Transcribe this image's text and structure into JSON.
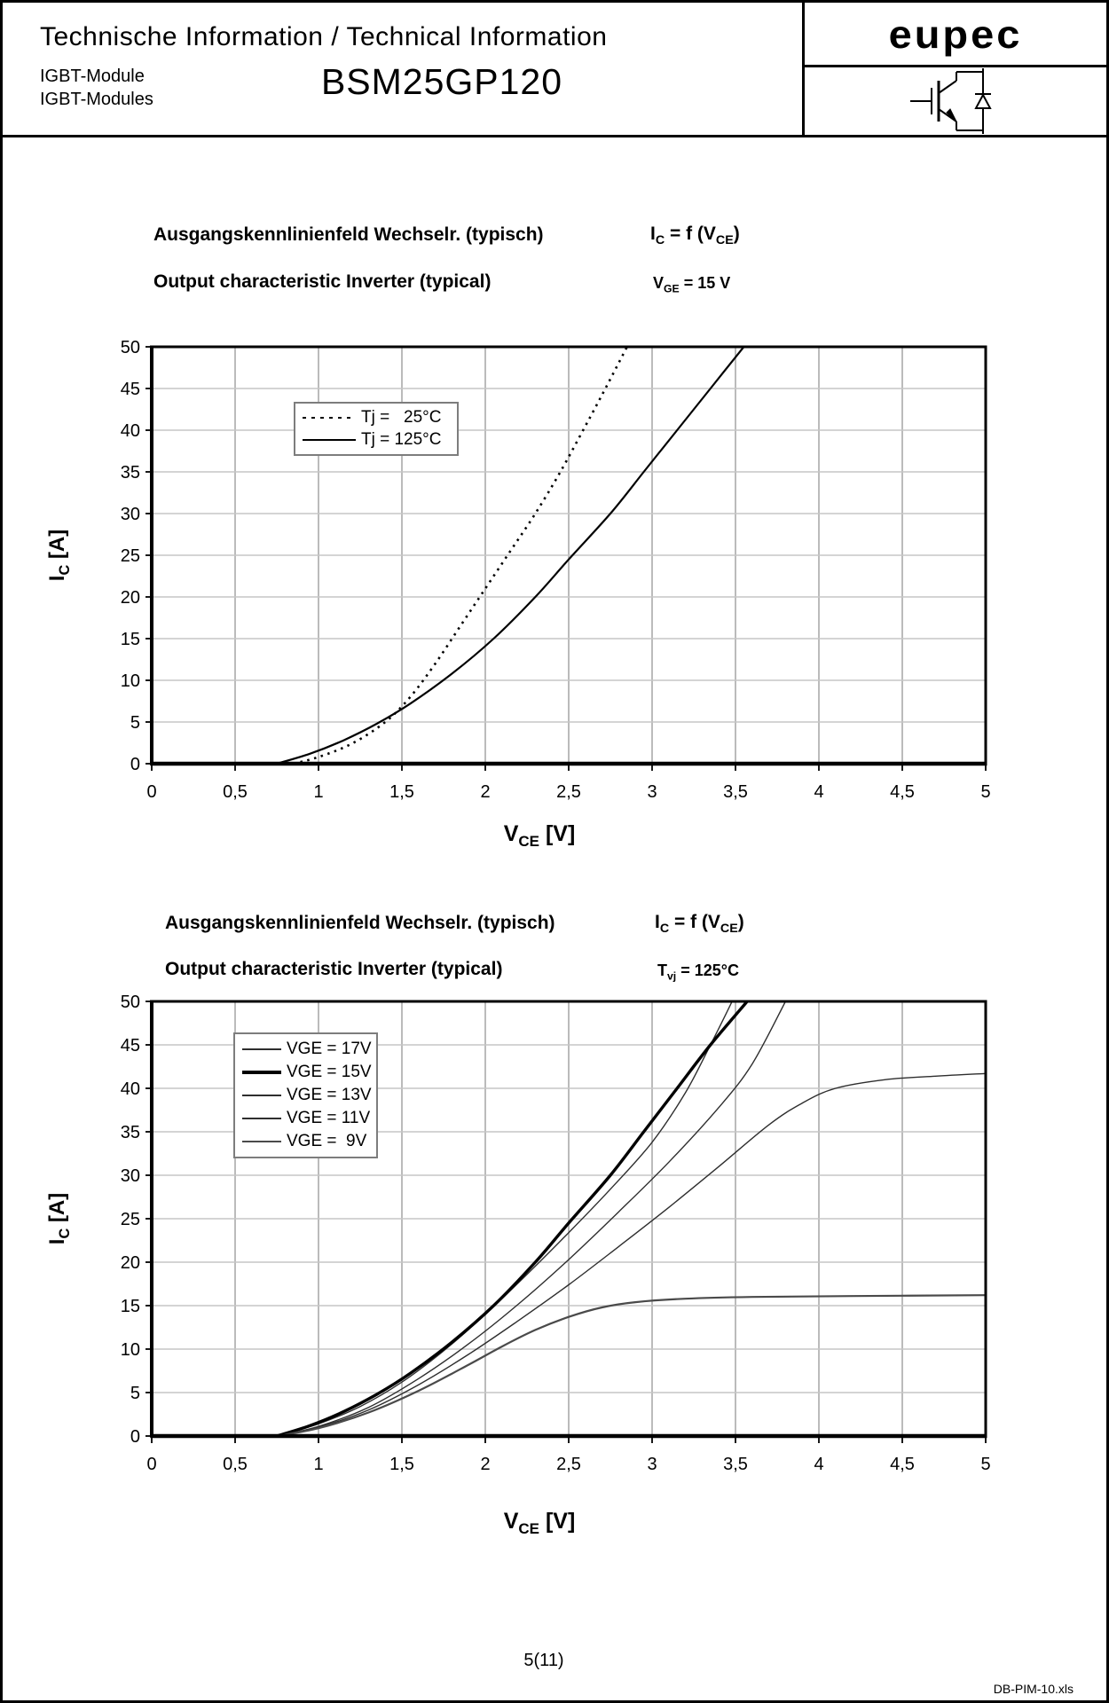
{
  "header": {
    "title": "Technische Information / Technical Information",
    "subtitle_de": "IGBT-Module",
    "subtitle_en": "IGBT-Modules",
    "part_number": "BSM25GP120",
    "brand": "eupec"
  },
  "chart1": {
    "title_de": "Ausgangskennlinienfeld Wechselr. (typisch)",
    "title_en": "Output characteristic Inverter (typical)",
    "formula": {
      "p1": "I",
      "s1": "C",
      "p2": " = f (V",
      "s2": "CE",
      "p3": ")"
    },
    "condition": {
      "p1": "V",
      "s1": "GE",
      "p2": " = 15 V"
    }
  },
  "chart2": {
    "title_de": "Ausgangskennlinienfeld Wechselr. (typisch)",
    "title_en": "Output characteristic Inverter (typical)",
    "formula": {
      "p1": "I",
      "s1": "C",
      "p2": " = f (V",
      "s2": "CE",
      "p3": ")"
    },
    "condition": {
      "p1": "T",
      "s1": "vj",
      "p2": " = 125°C"
    }
  },
  "axis": {
    "y_sym": "I",
    "y_sub": "C",
    "y_unit": " [A]",
    "x_sym": "V",
    "x_sub": "CE",
    "x_unit": " [V]"
  },
  "footer": {
    "page": "5(11)",
    "file": "DB-PIM-10.xls"
  },
  "colors": {
    "grid_v": "#9e9e9e",
    "grid_h": "#c6c6c6",
    "axis": "#000000",
    "curve_thin": "#2e2e2e",
    "curve_bold": "#000000",
    "curve_medium": "#4a4a4a"
  },
  "chart_data": [
    {
      "type": "line",
      "title": "Ausgangskennlinienfeld Wechselr. (typisch) / Output characteristic Inverter (typical)",
      "condition": "VGE = 15 V",
      "xlabel": "VCE [V]",
      "ylabel": "IC [A]",
      "xlim": [
        0,
        5
      ],
      "ylim": [
        0,
        50
      ],
      "grid": true,
      "legend_position": "upper-left-inside",
      "xticks": [
        "0",
        "0,5",
        "1",
        "1,5",
        "2",
        "2,5",
        "3",
        "3,5",
        "4",
        "4,5",
        "5"
      ],
      "yticks": [
        "0",
        "5",
        "10",
        "15",
        "20",
        "25",
        "30",
        "35",
        "40",
        "45",
        "50"
      ],
      "series": [
        {
          "name": "Tj =   25°C",
          "style": "dotted",
          "color": "#000000",
          "width": 2.6,
          "points": [
            [
              0.85,
              0
            ],
            [
              1.0,
              0.8
            ],
            [
              1.2,
              2.4
            ],
            [
              1.4,
              5.0
            ],
            [
              1.55,
              8.0
            ],
            [
              1.7,
              12.0
            ],
            [
              1.85,
              16.5
            ],
            [
              2.0,
              21.0
            ],
            [
              2.15,
              25.5
            ],
            [
              2.3,
              30.0
            ],
            [
              2.45,
              35.0
            ],
            [
              2.6,
              40.5
            ],
            [
              2.72,
              45.0
            ],
            [
              2.85,
              50.0
            ]
          ]
        },
        {
          "name": "Tj = 125°C",
          "style": "solid",
          "color": "#000000",
          "width": 2.2,
          "points": [
            [
              0.75,
              0
            ],
            [
              0.95,
              1.2
            ],
            [
              1.15,
              2.8
            ],
            [
              1.35,
              4.8
            ],
            [
              1.55,
              7.2
            ],
            [
              1.8,
              10.8
            ],
            [
              2.05,
              15.0
            ],
            [
              2.3,
              20.0
            ],
            [
              2.5,
              24.5
            ],
            [
              2.75,
              30.0
            ],
            [
              2.95,
              35.0
            ],
            [
              3.15,
              40.0
            ],
            [
              3.35,
              45.0
            ],
            [
              3.55,
              50.0
            ]
          ]
        }
      ]
    },
    {
      "type": "line",
      "title": "Ausgangskennlinienfeld Wechselr. (typisch) / Output characteristic Inverter (typical)",
      "condition": "Tvj = 125°C",
      "xlabel": "VCE [V]",
      "ylabel": "IC [A]",
      "xlim": [
        0,
        5
      ],
      "ylim": [
        0,
        50
      ],
      "grid": true,
      "legend_position": "upper-left-inside",
      "xticks": [
        "0",
        "0,5",
        "1",
        "1,5",
        "2",
        "2,5",
        "3",
        "3,5",
        "4",
        "4,5",
        "5"
      ],
      "yticks": [
        "0",
        "5",
        "10",
        "15",
        "20",
        "25",
        "30",
        "35",
        "40",
        "45",
        "50"
      ],
      "series": [
        {
          "name": "VGE = 17V",
          "style": "solid",
          "color": "#2e2e2e",
          "width": 1.4,
          "points": [
            [
              0.75,
              0
            ],
            [
              1.0,
              1.4
            ],
            [
              1.25,
              3.4
            ],
            [
              1.5,
              6.2
            ],
            [
              1.75,
              9.8
            ],
            [
              2.0,
              14.0
            ],
            [
              2.25,
              18.6
            ],
            [
              2.5,
              23.4
            ],
            [
              2.75,
              28.4
            ],
            [
              3.0,
              33.8
            ],
            [
              3.2,
              39.5
            ],
            [
              3.35,
              45.0
            ],
            [
              3.48,
              50.0
            ]
          ]
        },
        {
          "name": "VGE = 15V",
          "style": "solid",
          "color": "#000000",
          "width": 3.4,
          "points": [
            [
              0.75,
              0
            ],
            [
              0.95,
              1.2
            ],
            [
              1.15,
              2.8
            ],
            [
              1.35,
              4.8
            ],
            [
              1.55,
              7.2
            ],
            [
              1.8,
              10.8
            ],
            [
              2.05,
              15.0
            ],
            [
              2.3,
              20.0
            ],
            [
              2.5,
              24.5
            ],
            [
              2.75,
              30.0
            ],
            [
              2.95,
              35.0
            ],
            [
              3.15,
              40.0
            ],
            [
              3.35,
              45.0
            ],
            [
              3.57,
              50.0
            ]
          ]
        },
        {
          "name": "VGE = 13V",
          "style": "solid",
          "color": "#2e2e2e",
          "width": 1.4,
          "points": [
            [
              0.75,
              0
            ],
            [
              1.0,
              1.1
            ],
            [
              1.3,
              3.3
            ],
            [
              1.6,
              6.6
            ],
            [
              1.9,
              10.6
            ],
            [
              2.2,
              15.2
            ],
            [
              2.5,
              20.3
            ],
            [
              2.8,
              25.8
            ],
            [
              3.1,
              31.5
            ],
            [
              3.4,
              37.8
            ],
            [
              3.6,
              42.8
            ],
            [
              3.8,
              50.0
            ]
          ]
        },
        {
          "name": "VGE = 11V",
          "style": "solid",
          "color": "#2e2e2e",
          "width": 1.4,
          "points": [
            [
              0.75,
              0
            ],
            [
              1.0,
              1.0
            ],
            [
              1.3,
              3.0
            ],
            [
              1.6,
              5.9
            ],
            [
              1.9,
              9.4
            ],
            [
              2.2,
              13.3
            ],
            [
              2.5,
              17.4
            ],
            [
              2.8,
              21.8
            ],
            [
              3.1,
              26.3
            ],
            [
              3.4,
              31.0
            ],
            [
              3.7,
              35.8
            ],
            [
              3.9,
              38.3
            ],
            [
              4.1,
              40.0
            ],
            [
              4.4,
              41.0
            ],
            [
              4.7,
              41.4
            ],
            [
              5.0,
              41.7
            ]
          ]
        },
        {
          "name": "VGE =  9V",
          "style": "solid",
          "color": "#4a4a4a",
          "width": 2.2,
          "points": [
            [
              0.75,
              0
            ],
            [
              1.0,
              0.9
            ],
            [
              1.3,
              2.7
            ],
            [
              1.6,
              5.2
            ],
            [
              1.9,
              8.2
            ],
            [
              2.1,
              10.3
            ],
            [
              2.3,
              12.2
            ],
            [
              2.5,
              13.7
            ],
            [
              2.7,
              14.8
            ],
            [
              2.9,
              15.4
            ],
            [
              3.2,
              15.8
            ],
            [
              3.6,
              16.0
            ],
            [
              4.2,
              16.1
            ],
            [
              5.0,
              16.2
            ]
          ]
        }
      ]
    }
  ]
}
